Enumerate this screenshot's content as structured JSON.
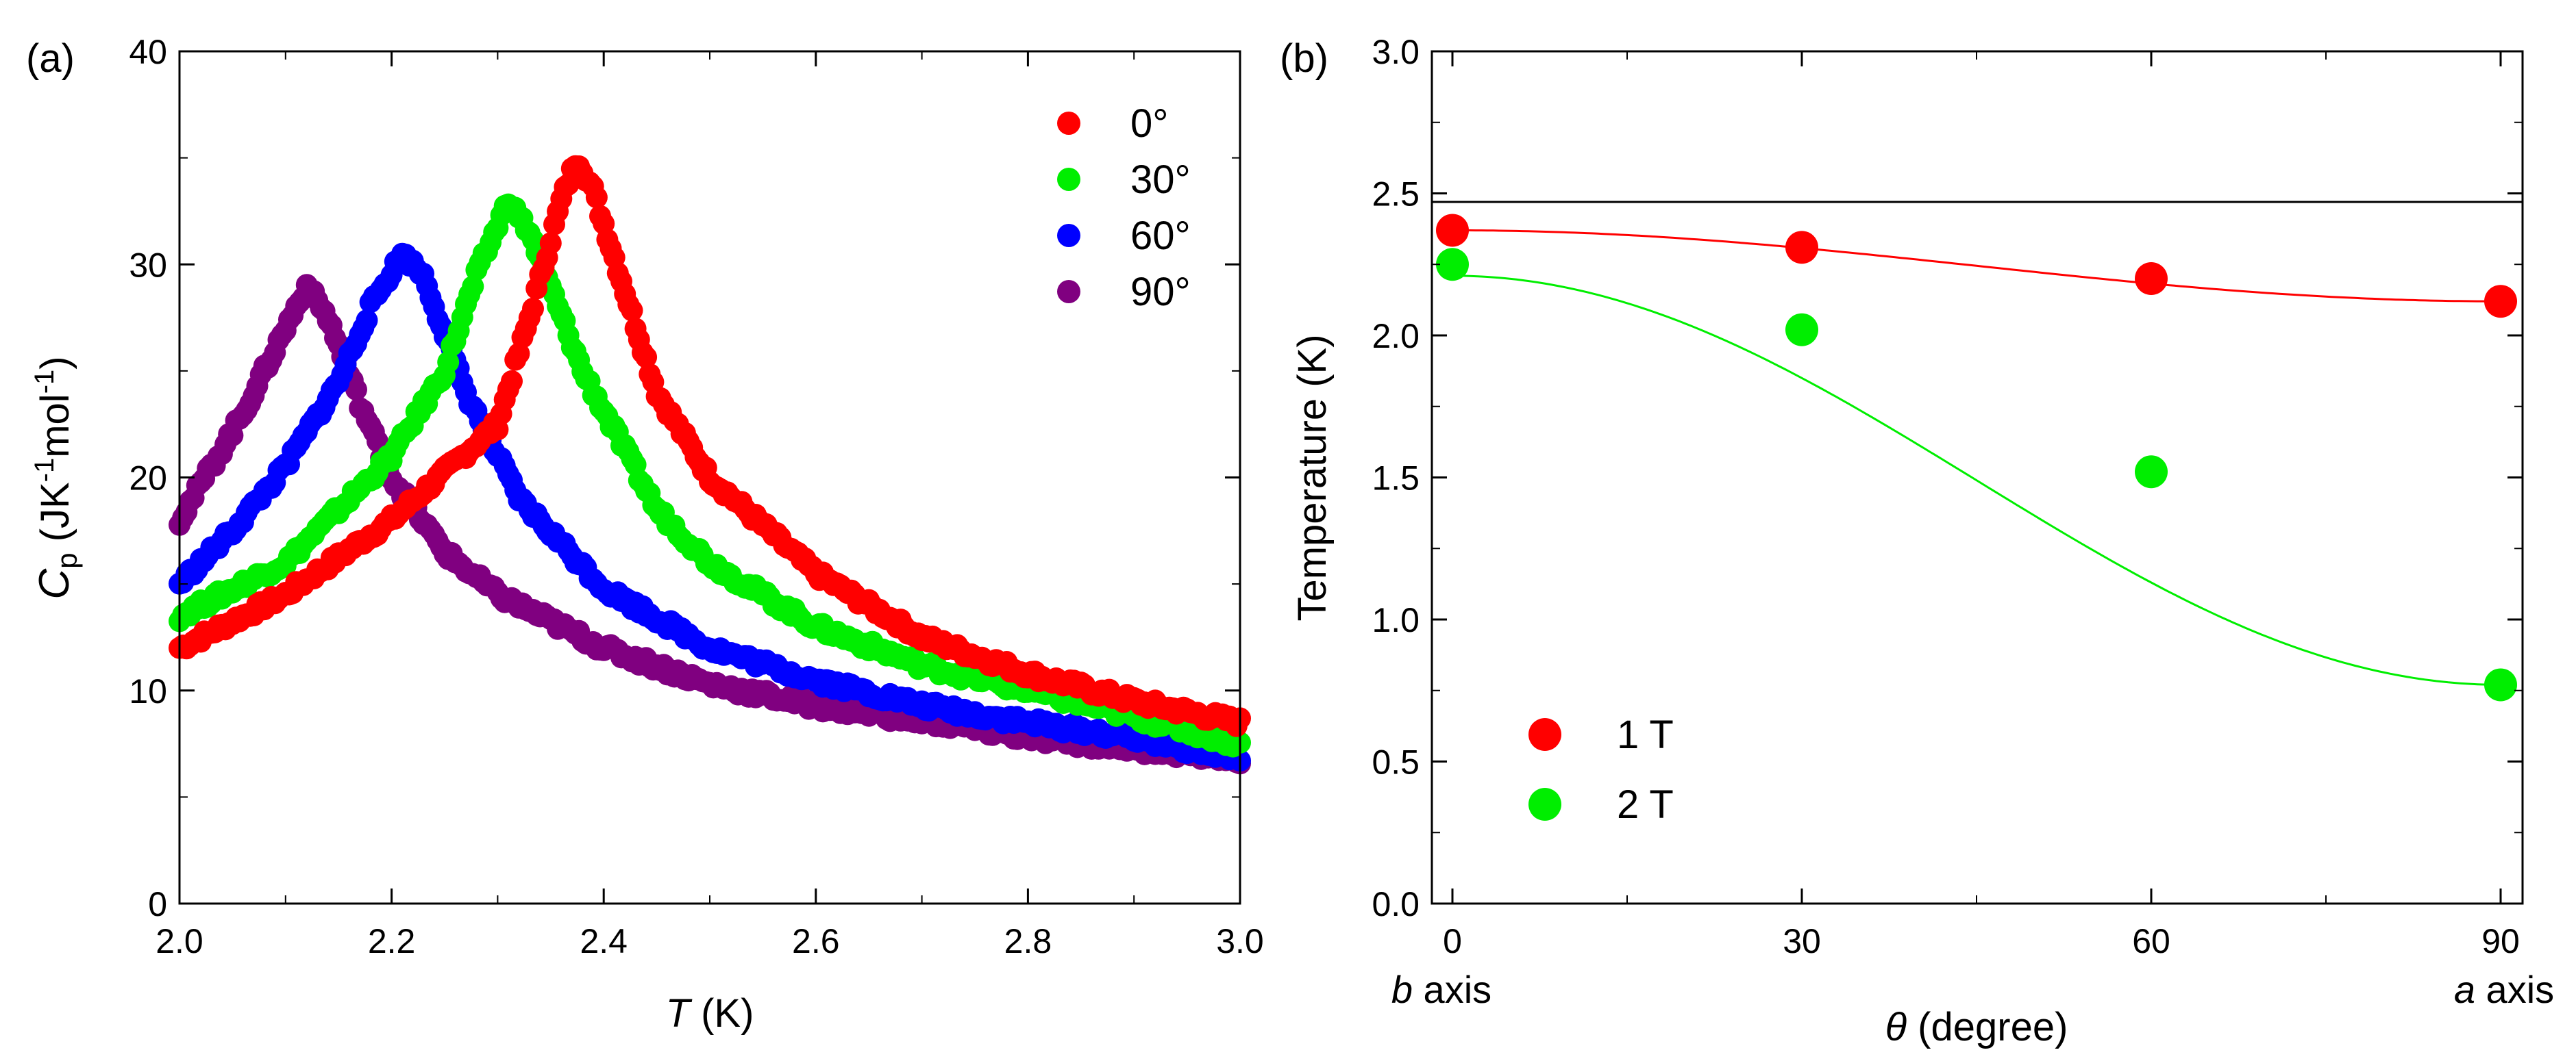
{
  "chart_data": [
    {
      "panel_label": "(a)",
      "type": "scatter",
      "xlabel": {
        "italic": "T",
        "rest": " (K)"
      },
      "ylabel": {
        "main": "C",
        "sub": "p",
        "unit_open": " (JK",
        "sup1": "-1",
        "mid": "mol",
        "sup2": "-1",
        "close": ")"
      },
      "xlim": [
        2.0,
        3.0
      ],
      "ylim": [
        0,
        40
      ],
      "xticks": [
        "2.0",
        "2.2",
        "2.4",
        "2.6",
        "2.8",
        "3.0"
      ],
      "yticks": [
        "0",
        "10",
        "20",
        "30",
        "40"
      ],
      "grid": false,
      "legend_position": "top-right",
      "series": [
        {
          "name": "0°",
          "color": "#ff0000",
          "peak_x": 2.375,
          "peak_y": 35.0,
          "x": [
            2.0,
            2.1,
            2.2,
            2.3,
            2.33,
            2.36,
            2.375,
            2.39,
            2.45,
            2.5,
            2.6,
            2.7,
            2.8,
            2.9,
            3.0
          ],
          "y": [
            12.0,
            14.5,
            18.0,
            22.5,
            27.5,
            33.0,
            35.0,
            33.5,
            24.0,
            20.0,
            15.5,
            12.5,
            10.8,
            9.5,
            8.5
          ]
        },
        {
          "name": "30°",
          "color": "#00ee00",
          "peak_x": 2.31,
          "peak_y": 33.0,
          "x": [
            2.0,
            2.1,
            2.2,
            2.25,
            2.28,
            2.31,
            2.33,
            2.38,
            2.45,
            2.5,
            2.6,
            2.7,
            2.8,
            2.9,
            3.0
          ],
          "y": [
            13.5,
            16.0,
            21.0,
            25.0,
            29.5,
            33.0,
            31.5,
            25.0,
            18.5,
            16.0,
            13.0,
            11.2,
            10.0,
            8.8,
            7.5
          ]
        },
        {
          "name": "60°",
          "color": "#0000ff",
          "peak_x": 2.21,
          "peak_y": 30.5,
          "x": [
            2.0,
            2.05,
            2.1,
            2.15,
            2.18,
            2.21,
            2.23,
            2.27,
            2.32,
            2.4,
            2.5,
            2.6,
            2.7,
            2.8,
            2.9,
            3.0
          ],
          "y": [
            15.0,
            17.5,
            20.5,
            24.5,
            28.0,
            30.5,
            29.5,
            24.0,
            19.0,
            14.8,
            12.0,
            10.5,
            9.3,
            8.5,
            7.8,
            6.8
          ]
        },
        {
          "name": "90°",
          "color": "#800080",
          "peak_x": 2.12,
          "peak_y": 29.0,
          "x": [
            2.0,
            2.03,
            2.06,
            2.09,
            2.12,
            2.14,
            2.17,
            2.2,
            2.25,
            2.3,
            2.4,
            2.5,
            2.6,
            2.7,
            2.8,
            2.9,
            3.0
          ],
          "y": [
            18.0,
            20.5,
            23.0,
            26.0,
            29.0,
            27.5,
            23.5,
            20.0,
            16.5,
            14.5,
            12.0,
            10.3,
            9.3,
            8.6,
            7.8,
            7.3,
            6.8
          ]
        }
      ]
    },
    {
      "panel_label": "(b)",
      "type": "scatter",
      "xlabel": {
        "italic": "θ",
        "rest": " (degree)"
      },
      "ylabel": "Temperature (K)",
      "xlim": [
        0,
        90
      ],
      "ylim": [
        0.0,
        3.0
      ],
      "xticks": [
        "0",
        "30",
        "60",
        "90"
      ],
      "yticks": [
        "0.0",
        "0.5",
        "1.0",
        "1.5",
        "2.0",
        "2.5",
        "3.0"
      ],
      "x_end_labels": {
        "left": {
          "italic": "b",
          "rest": " axis"
        },
        "right": {
          "italic": "a",
          "rest": " axis"
        }
      },
      "reference_line": {
        "y": 2.47,
        "color": "#000000"
      },
      "grid": false,
      "legend_position": "bottom-left",
      "series": [
        {
          "name": "1 T",
          "color": "#ff0000",
          "x": [
            0,
            30,
            60,
            90
          ],
          "y": [
            2.37,
            2.31,
            2.2,
            2.12
          ],
          "fit": {
            "form": "cos2",
            "a": 2.37,
            "b": 2.12
          }
        },
        {
          "name": "2 T",
          "color": "#00ee00",
          "x": [
            0,
            30,
            60,
            90
          ],
          "y": [
            2.25,
            2.02,
            1.52,
            0.77
          ],
          "fit": {
            "form": "cos2",
            "a": 2.21,
            "b": 0.77
          }
        }
      ]
    }
  ]
}
